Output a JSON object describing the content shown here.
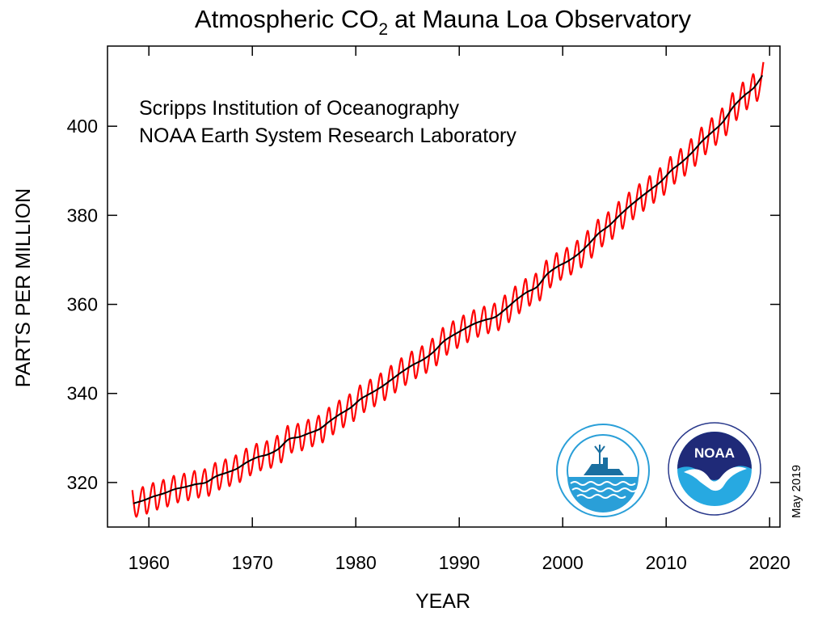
{
  "chart_data": {
    "type": "line",
    "title": [
      "Atmospheric CO",
      "2",
      "at Mauna Loa Observatory"
    ],
    "annotations": [
      "Scripps Institution of Oceanography",
      "NOAA Earth System Research Laboratory"
    ],
    "date_note": "May 2019",
    "logo_text": "NOAA",
    "x_label": "YEAR",
    "y_label": "PARTS PER MILLION",
    "xlim": [
      1956,
      2021
    ],
    "ylim": [
      310,
      418
    ],
    "xticks": [
      1960,
      1970,
      1980,
      1990,
      2000,
      2010,
      2020
    ],
    "yticks": [
      320,
      340,
      360,
      380,
      400
    ],
    "series": [
      {
        "color": "#ff0000",
        "x": [
          1958.4,
          1958.8,
          1959.4,
          1959.8,
          1960.4,
          1960.8,
          1961.4,
          1961.8,
          1962.4,
          1962.8,
          1963.4,
          1963.8,
          1964.4,
          1964.8,
          1965.4,
          1965.8,
          1966.4,
          1966.8,
          1967.4,
          1967.8,
          1968.4,
          1968.8,
          1969.4,
          1969.8,
          1970.4,
          1970.8,
          1971.4,
          1971.8,
          1972.4,
          1972.8,
          1973.4,
          1973.8,
          1974.4,
          1974.8,
          1975.4,
          1975.8,
          1976.4,
          1976.8,
          1977.4,
          1977.8,
          1978.4,
          1978.8,
          1979.4,
          1979.8,
          1980.4,
          1980.8,
          1981.4,
          1981.8,
          1982.4,
          1982.8,
          1983.4,
          1983.8,
          1984.4,
          1984.8,
          1985.4,
          1985.8,
          1986.4,
          1986.8,
          1987.4,
          1987.8,
          1988.4,
          1988.8,
          1989.4,
          1989.8,
          1990.4,
          1990.8,
          1991.4,
          1991.8,
          1992.4,
          1992.8,
          1993.4,
          1993.8,
          1994.4,
          1994.8,
          1995.4,
          1995.8,
          1996.4,
          1996.8,
          1997.4,
          1997.8,
          1998.4,
          1998.8,
          1999.4,
          1999.8,
          2000.4,
          2000.8,
          2001.4,
          2001.8,
          2002.4,
          2002.8,
          2003.4,
          2003.8,
          2004.4,
          2004.8,
          2005.4,
          2005.8,
          2006.4,
          2006.8,
          2007.4,
          2007.8,
          2008.4,
          2008.8,
          2009.4,
          2009.8,
          2010.4,
          2010.8,
          2011.4,
          2011.8,
          2012.4,
          2012.8,
          2013.4,
          2013.8,
          2014.4,
          2014.8,
          2015.4,
          2015.8,
          2016.4,
          2016.8,
          2017.4,
          2017.8,
          2018.4,
          2018.8,
          2019.4
        ],
        "values": [
          318.3,
          312.3,
          319.0,
          313.0,
          319.9,
          313.9,
          320.6,
          314.6,
          321.5,
          315.5,
          322.0,
          316.0,
          322.6,
          316.6,
          323.0,
          317.0,
          324.4,
          318.4,
          325.2,
          319.2,
          326.1,
          320.1,
          327.6,
          321.6,
          328.7,
          322.7,
          329.3,
          323.3,
          330.5,
          324.5,
          332.7,
          326.7,
          333.2,
          327.2,
          334.1,
          328.1,
          335.0,
          329.0,
          336.8,
          330.8,
          338.4,
          332.4,
          339.8,
          333.8,
          341.8,
          335.8,
          343.1,
          337.1,
          344.5,
          338.5,
          346.2,
          340.2,
          347.9,
          341.9,
          349.4,
          343.4,
          350.6,
          344.6,
          352.3,
          346.3,
          354.7,
          348.7,
          356.2,
          350.2,
          357.5,
          351.5,
          358.7,
          352.7,
          359.5,
          353.5,
          360.2,
          354.2,
          362.0,
          356.0,
          364.0,
          358.0,
          365.7,
          359.7,
          366.9,
          360.9,
          369.8,
          363.8,
          371.5,
          365.5,
          372.7,
          366.7,
          374.3,
          368.3,
          376.5,
          370.5,
          379.0,
          373.0,
          380.7,
          374.7,
          383.0,
          377.0,
          385.1,
          379.1,
          387.0,
          381.0,
          388.8,
          382.8,
          390.6,
          384.6,
          393.1,
          387.1,
          394.9,
          388.9,
          397.1,
          391.1,
          399.7,
          393.7,
          401.8,
          395.8,
          404.0,
          398.0,
          407.4,
          401.4,
          409.8,
          403.8,
          411.7,
          405.7,
          414.4
        ]
      },
      {
        "color": "#000000",
        "x": [
          1958.5,
          1959.5,
          1960.5,
          1961.5,
          1962.5,
          1963.5,
          1964.5,
          1965.5,
          1966.5,
          1967.5,
          1968.5,
          1969.5,
          1970.5,
          1971.5,
          1972.5,
          1973.5,
          1974.5,
          1975.5,
          1976.5,
          1977.5,
          1978.5,
          1979.5,
          1980.5,
          1981.5,
          1982.5,
          1983.5,
          1984.5,
          1985.5,
          1986.5,
          1987.5,
          1988.5,
          1989.5,
          1990.5,
          1991.5,
          1992.5,
          1993.5,
          1994.5,
          1995.5,
          1996.5,
          1997.5,
          1998.5,
          1999.5,
          2000.5,
          2001.5,
          2002.5,
          2003.5,
          2004.5,
          2005.5,
          2006.5,
          2007.5,
          2008.5,
          2009.5,
          2010.5,
          2011.5,
          2012.5,
          2013.5,
          2014.5,
          2015.5,
          2016.5,
          2017.5,
          2018.5,
          2019.3
        ],
        "values": [
          315.3,
          316.0,
          316.9,
          317.6,
          318.5,
          319.0,
          319.6,
          320.0,
          321.4,
          322.2,
          323.1,
          324.6,
          325.7,
          326.3,
          327.5,
          329.7,
          330.2,
          331.1,
          332.0,
          333.8,
          335.4,
          336.8,
          338.8,
          340.1,
          341.5,
          343.2,
          344.9,
          346.4,
          347.6,
          349.3,
          351.7,
          353.2,
          354.5,
          355.7,
          356.5,
          357.2,
          359.0,
          361.0,
          362.7,
          363.9,
          366.8,
          368.5,
          369.7,
          371.3,
          373.5,
          376.0,
          377.7,
          380.0,
          382.1,
          384.0,
          385.8,
          387.6,
          390.1,
          391.9,
          394.1,
          396.7,
          398.8,
          401.0,
          404.4,
          406.8,
          408.7,
          411.4
        ]
      }
    ]
  }
}
